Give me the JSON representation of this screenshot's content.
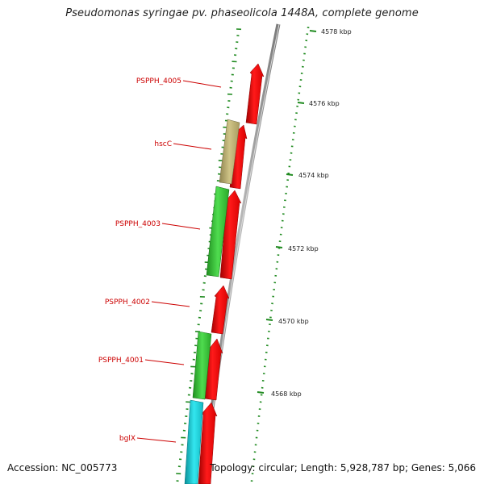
{
  "title": "Pseudomonas syringae pv. phaseolicola 1448A, complete genome",
  "footer": {
    "accession": "Accession: NC_005773",
    "topology": "Topology: circular; Length: 5,928,787 bp; Genes: 5,066"
  },
  "scale_labels": [
    "4578 kbp",
    "4576 kbp",
    "4574 kbp",
    "4572 kbp",
    "4570 kbp",
    "4568 kbp"
  ],
  "gene_labels": [
    "PSPPH_4005",
    "hscC",
    "PSPPH_4003",
    "PSPPH_4002",
    "PSPPH_4001",
    "bglX"
  ],
  "colors": {
    "backbone": "#8c8c8c",
    "red_feature": "#ee1111",
    "green_feature": "#33bb33",
    "khaki_feature": "#b9ad6c",
    "cyan_feature": "#18c6d0",
    "tick": "#1f8a1f",
    "label_red": "#cc0000"
  }
}
